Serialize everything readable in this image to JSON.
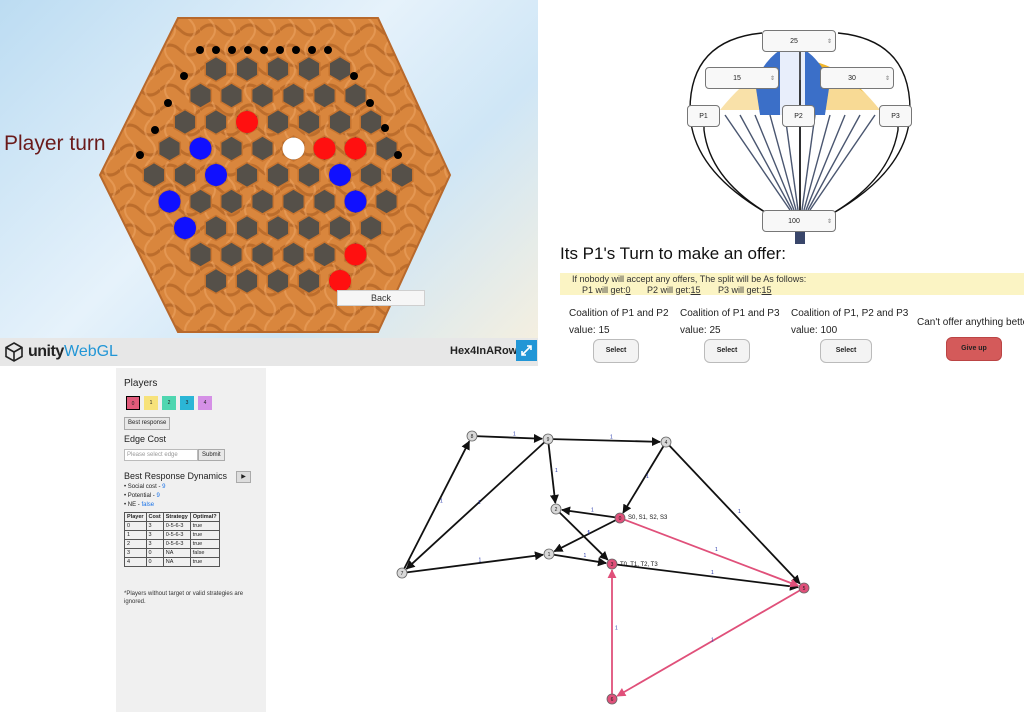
{
  "game": {
    "status": "Player turn",
    "back_label": "Back",
    "brand_unity": "unity",
    "brand_webgl": "WebGL",
    "title": "Hex4InARow"
  },
  "bargain": {
    "nodes": {
      "top": "25",
      "left": "15",
      "right": "30",
      "bottom": "100"
    },
    "players": [
      "P1",
      "P2",
      "P3"
    ],
    "heading": "Its P1's Turn to make an offer:",
    "split_note": "If nobody will accept any offers, The split will be As follows:",
    "p1_get_label": "P1 will get:",
    "p1_get_value": "0",
    "p2_get_label": "P2 will get:",
    "p2_get_value": "15",
    "p3_get_label": "P3 will get:",
    "p3_get_value": "15",
    "coalitions": [
      {
        "title": "Coalition of P1 and P2",
        "value": "value: 15",
        "button": "Select"
      },
      {
        "title": "Coalition of P1 and P3",
        "value": "value: 25",
        "button": "Select"
      },
      {
        "title": "Coalition of P1, P2 and P3",
        "value": "value: 100",
        "button": "Select"
      }
    ],
    "cant_offer": "Can't offer anything bette",
    "give_up": "Give up"
  },
  "network": {
    "players_heading": "Players",
    "player_chips": [
      "0",
      "1",
      "2",
      "3",
      "4"
    ],
    "player_colors": [
      "#e05a7a",
      "#f7e27a",
      "#4fd6b0",
      "#2bb6d6",
      "#d590e6"
    ],
    "best_response_label": "Best response",
    "edge_cost_heading": "Edge Cost",
    "edge_placeholder": "Please select edge",
    "submit_label": "Submit",
    "brd_heading": "Best Response Dynamics",
    "brd_play_icon": "▶",
    "social_cost_label": "Social cost - ",
    "social_cost_value": "9",
    "potential_label": "Potential - ",
    "potential_value": "9",
    "ne_label": "NE - ",
    "ne_value": "false",
    "table_headers": [
      "Player",
      "Cost",
      "Strategy",
      "Optimal?"
    ],
    "table_rows": [
      [
        "0",
        "3",
        "0-5-6-3",
        "true"
      ],
      [
        "1",
        "3",
        "0-5-6-3",
        "true"
      ],
      [
        "2",
        "3",
        "0-5-6-3",
        "true"
      ],
      [
        "3",
        "0",
        "NA",
        "false"
      ],
      [
        "4",
        "0",
        "NA",
        "true"
      ]
    ],
    "footnote": "*Players without target or valid strategies are ignored.",
    "node_labels": [
      "0",
      "1",
      "2",
      "3",
      "4",
      "5",
      "6",
      "7",
      "8",
      "9"
    ],
    "source_tag": "S0, S1, S2, S3",
    "target_tag": "T0, T1, T2, T3",
    "edge_weight": "1",
    "highlight_color": "#e0507a"
  }
}
